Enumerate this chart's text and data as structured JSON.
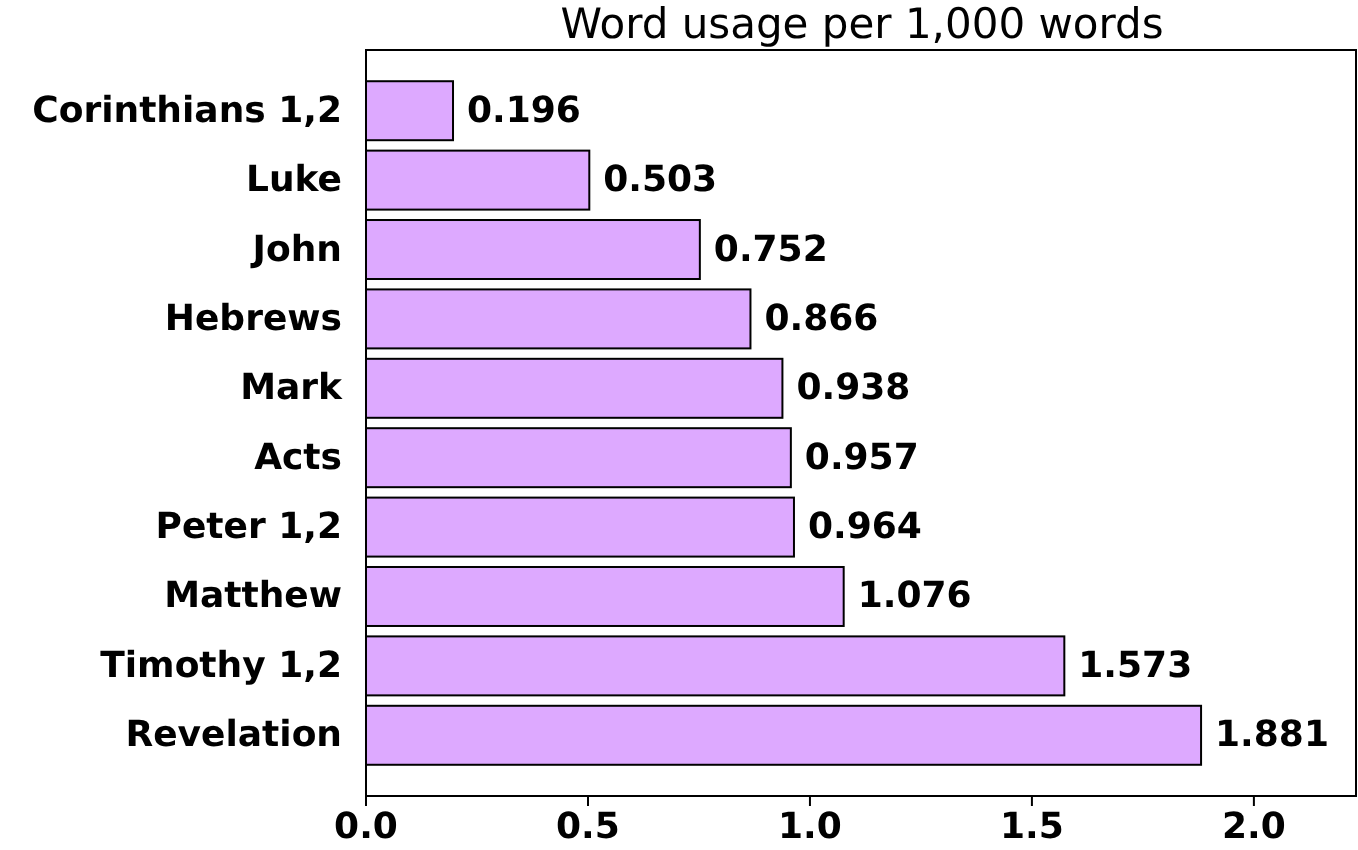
{
  "chart_data": {
    "type": "bar",
    "orientation": "horizontal",
    "title": "Word usage per 1,000 words",
    "categories": [
      "Corinthians 1,2",
      "Luke",
      "John",
      "Hebrews",
      "Mark",
      "Acts",
      "Peter 1,2",
      "Matthew",
      "Timothy 1,2",
      "Revelation"
    ],
    "values": [
      0.196,
      0.503,
      0.752,
      0.866,
      0.938,
      0.957,
      0.964,
      1.076,
      1.573,
      1.881
    ],
    "color": "#dda9ff",
    "data_labels": true,
    "xlim": [
      0,
      2.23
    ],
    "xticks": [
      {
        "value": 0,
        "label": "0.0"
      },
      {
        "value": 0.5,
        "label": "0.5"
      },
      {
        "value": 1,
        "label": "1.0"
      },
      {
        "value": 1.5,
        "label": "1.5"
      },
      {
        "value": 2,
        "label": "2.0"
      }
    ]
  }
}
